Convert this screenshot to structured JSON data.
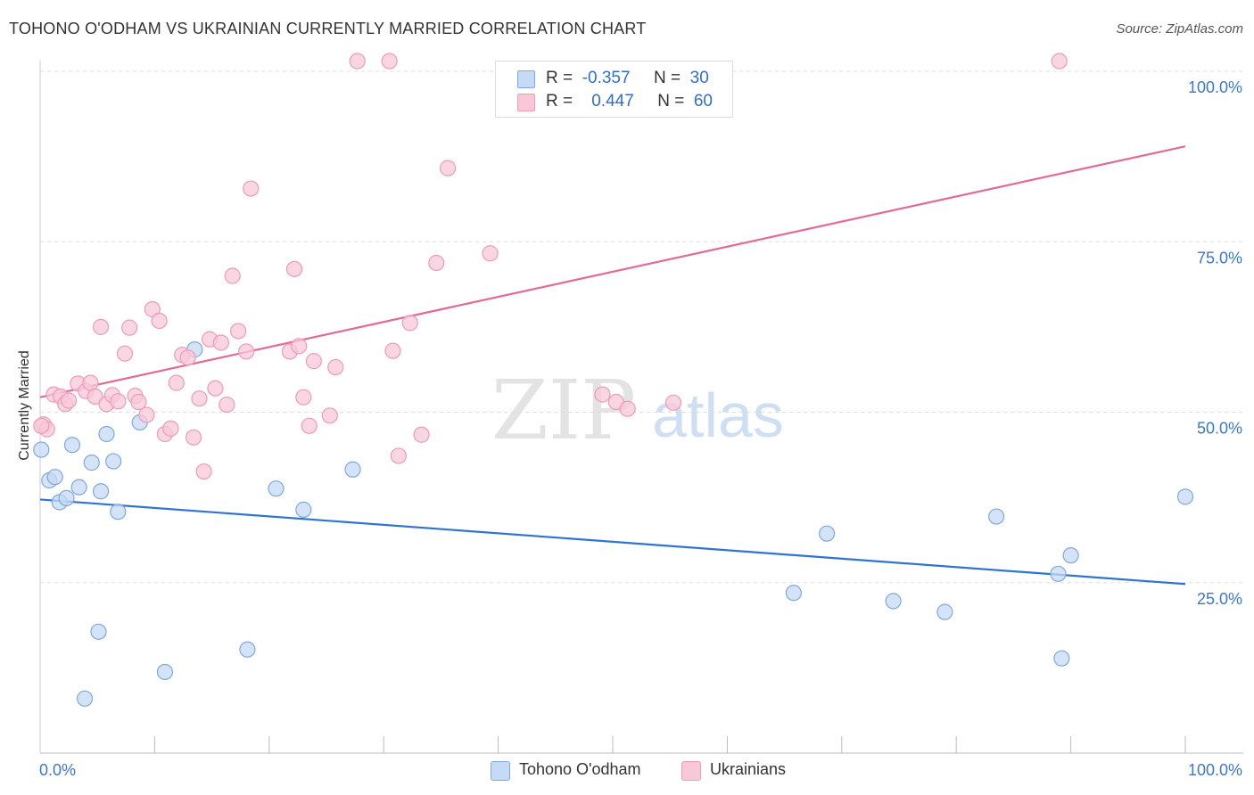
{
  "header": {
    "title": "TOHONO O'ODHAM VS UKRAINIAN CURRENTLY MARRIED CORRELATION CHART",
    "source": "Source: ZipAtlas.com"
  },
  "watermark": {
    "zip": "ZIP",
    "atlas": "atlas"
  },
  "legend_top": {
    "rows": [
      {
        "r_label": "R =",
        "r_value": "-0.357",
        "n_label": "N =",
        "n_value": "30"
      },
      {
        "r_label": "R =",
        "r_value": "0.447",
        "n_label": "N =",
        "n_value": "60"
      }
    ]
  },
  "legend_bottom": {
    "items": [
      "Tohono O'odham",
      "Ukrainians"
    ]
  },
  "colors": {
    "blue_fill": "#c5daf5",
    "blue_stroke": "#7fa8e0",
    "blue_line": "#2f74d0",
    "pink_fill": "#f8c8d8",
    "pink_stroke": "#ee9ab8",
    "pink_line": "#e36a96",
    "tick_label": "#3a78d0",
    "grid": "#dddddd"
  },
  "chart_data": {
    "type": "scatter",
    "title": "TOHONO O'ODHAM VS UKRAINIAN CURRENTLY MARRIED CORRELATION CHART",
    "xlabel": "",
    "ylabel": "Currently Married",
    "xlim": [
      0,
      100
    ],
    "ylim": [
      0,
      100
    ],
    "x_tick_labels": [
      "0.0%",
      "100.0%"
    ],
    "y_ticks": [
      25,
      50,
      75,
      100
    ],
    "y_tick_labels": [
      "25.0%",
      "50.0%",
      "75.0%",
      "100.0%"
    ],
    "grid": true,
    "series": [
      {
        "name": "Tohono O'odham",
        "color": "#7fa8e0",
        "trend": {
          "x": [
            0,
            100
          ],
          "y": [
            37.2,
            24.8
          ]
        },
        "points": [
          [
            0.1,
            44.5
          ],
          [
            0.8,
            40.0
          ],
          [
            1.3,
            40.5
          ],
          [
            1.7,
            36.8
          ],
          [
            2.3,
            37.4
          ],
          [
            2.8,
            45.2
          ],
          [
            3.4,
            39.0
          ],
          [
            4.5,
            42.6
          ],
          [
            5.3,
            38.4
          ],
          [
            5.8,
            46.8
          ],
          [
            6.4,
            42.8
          ],
          [
            6.8,
            35.4
          ],
          [
            8.7,
            48.5
          ],
          [
            13.5,
            59.2
          ],
          [
            20.6,
            38.8
          ],
          [
            23.0,
            35.7
          ],
          [
            27.3,
            41.6
          ],
          [
            5.1,
            17.8
          ],
          [
            3.9,
            8.0
          ],
          [
            10.9,
            11.9
          ],
          [
            18.1,
            15.2
          ],
          [
            65.8,
            23.5
          ],
          [
            68.7,
            32.2
          ],
          [
            74.5,
            22.3
          ],
          [
            79.0,
            20.7
          ],
          [
            83.5,
            34.7
          ],
          [
            88.9,
            26.3
          ],
          [
            90.0,
            29.0
          ],
          [
            89.2,
            13.9
          ],
          [
            100.0,
            37.6
          ]
        ]
      },
      {
        "name": "Ukrainians",
        "color": "#ee9ab8",
        "trend": {
          "x": [
            0,
            100
          ],
          "y": [
            52.2,
            89.0
          ]
        },
        "points": [
          [
            0.3,
            48.2
          ],
          [
            0.6,
            47.5
          ],
          [
            1.2,
            52.6
          ],
          [
            1.8,
            52.3
          ],
          [
            2.2,
            51.2
          ],
          [
            2.5,
            51.7
          ],
          [
            3.3,
            54.2
          ],
          [
            4.0,
            53.1
          ],
          [
            4.4,
            54.3
          ],
          [
            4.8,
            52.3
          ],
          [
            5.3,
            62.5
          ],
          [
            5.8,
            51.2
          ],
          [
            6.3,
            52.5
          ],
          [
            6.8,
            51.6
          ],
          [
            7.4,
            58.6
          ],
          [
            7.8,
            62.4
          ],
          [
            8.3,
            52.4
          ],
          [
            8.6,
            51.5
          ],
          [
            9.3,
            49.6
          ],
          [
            9.8,
            65.1
          ],
          [
            10.4,
            63.4
          ],
          [
            10.9,
            46.8
          ],
          [
            11.4,
            47.6
          ],
          [
            11.9,
            54.3
          ],
          [
            12.4,
            58.4
          ],
          [
            12.9,
            58.0
          ],
          [
            13.4,
            46.3
          ],
          [
            13.9,
            52.0
          ],
          [
            14.3,
            41.3
          ],
          [
            14.8,
            60.7
          ],
          [
            15.3,
            53.5
          ],
          [
            15.8,
            60.2
          ],
          [
            16.3,
            51.1
          ],
          [
            16.8,
            70.0
          ],
          [
            17.3,
            61.9
          ],
          [
            18.0,
            58.9
          ],
          [
            18.4,
            82.8
          ],
          [
            21.8,
            58.9
          ],
          [
            22.2,
            71.0
          ],
          [
            22.6,
            59.7
          ],
          [
            23.0,
            52.2
          ],
          [
            23.5,
            48.0
          ],
          [
            23.9,
            57.5
          ],
          [
            25.3,
            49.5
          ],
          [
            25.8,
            56.6
          ],
          [
            27.7,
            101.5
          ],
          [
            30.5,
            101.5
          ],
          [
            30.8,
            59.0
          ],
          [
            31.3,
            43.6
          ],
          [
            32.3,
            63.1
          ],
          [
            33.3,
            46.7
          ],
          [
            34.6,
            71.9
          ],
          [
            35.6,
            85.8
          ],
          [
            39.3,
            73.3
          ],
          [
            49.1,
            52.6
          ],
          [
            50.3,
            51.5
          ],
          [
            51.3,
            50.5
          ],
          [
            55.3,
            51.4
          ],
          [
            89.0,
            101.5
          ],
          [
            0.1,
            48.0
          ]
        ]
      }
    ]
  }
}
